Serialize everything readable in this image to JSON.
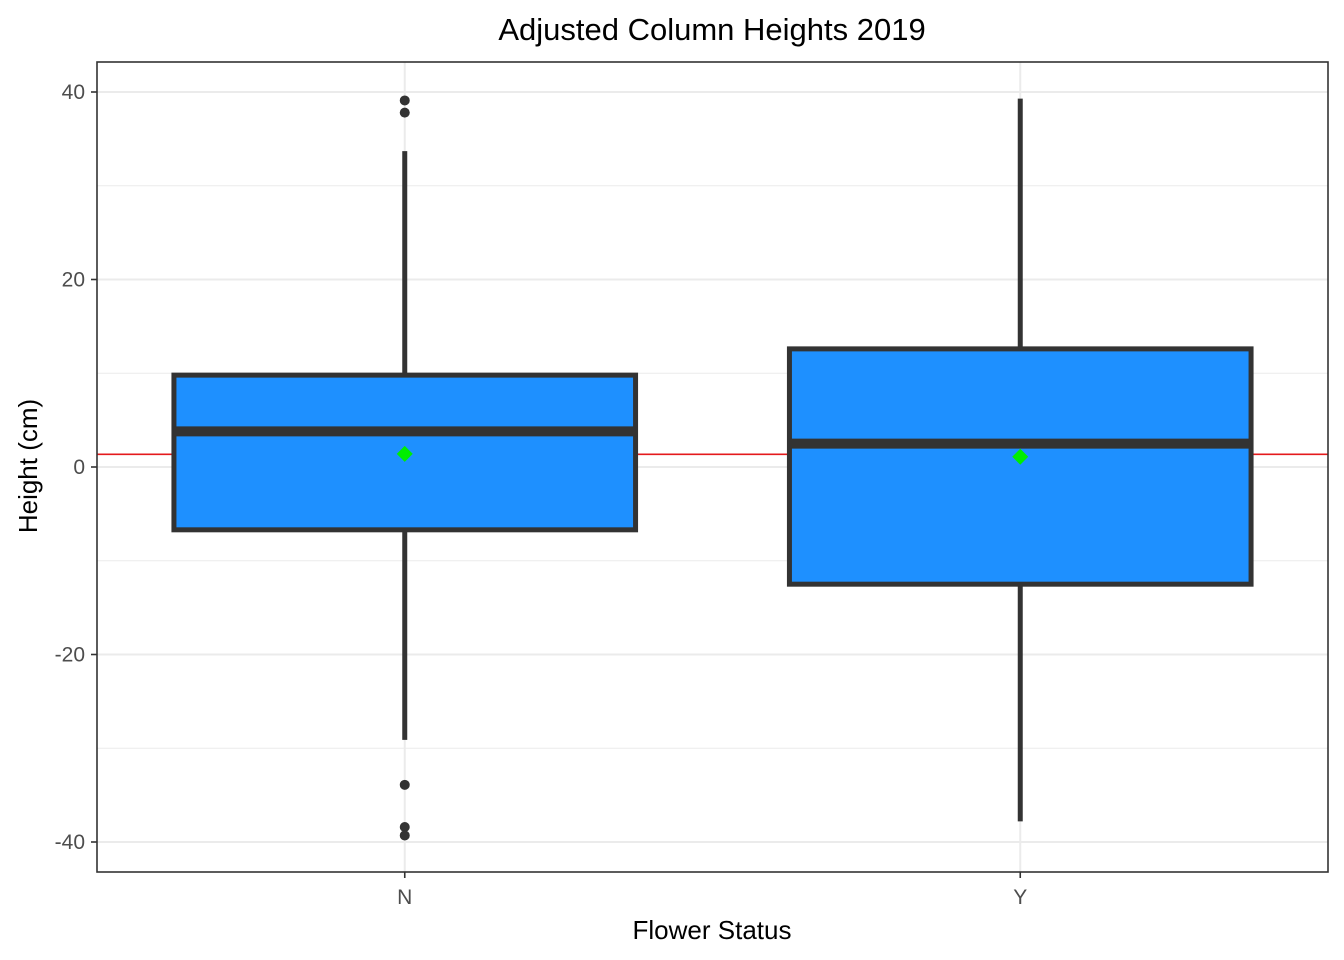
{
  "chart_data": {
    "type": "box",
    "title": "Adjusted Column Heights 2019",
    "xlabel": "Flower Status",
    "ylabel": "Height (cm)",
    "ylim": [
      -43.2,
      43.2
    ],
    "yticks": [
      40,
      20,
      0,
      -20,
      -40
    ],
    "ytick_labels": [
      "40",
      "20",
      "0",
      "-20",
      "-40"
    ],
    "categories": [
      "N",
      "Y"
    ],
    "boxes": [
      {
        "category": "N",
        "q1": -6.7,
        "median": 3.8,
        "q3": 9.8,
        "whisker_low": -29.1,
        "whisker_high": 33.7,
        "mean": 1.4,
        "outliers": [
          39.1,
          37.8,
          -33.9,
          -38.4,
          -39.3
        ]
      },
      {
        "category": "Y",
        "q1": -12.5,
        "median": 2.5,
        "q3": 12.6,
        "whisker_low": -37.8,
        "whisker_high": 39.3,
        "mean": 1.1,
        "outliers": []
      }
    ],
    "reference_line": 1.35,
    "grid": true,
    "legend": "none",
    "colors": {
      "box_fill": "#1e90ff",
      "box_outline": "#333333",
      "mean_marker": "#00ee00",
      "reference_line": "#e41a1c",
      "grid": "#ebebeb",
      "panel_border": "#333333"
    }
  }
}
